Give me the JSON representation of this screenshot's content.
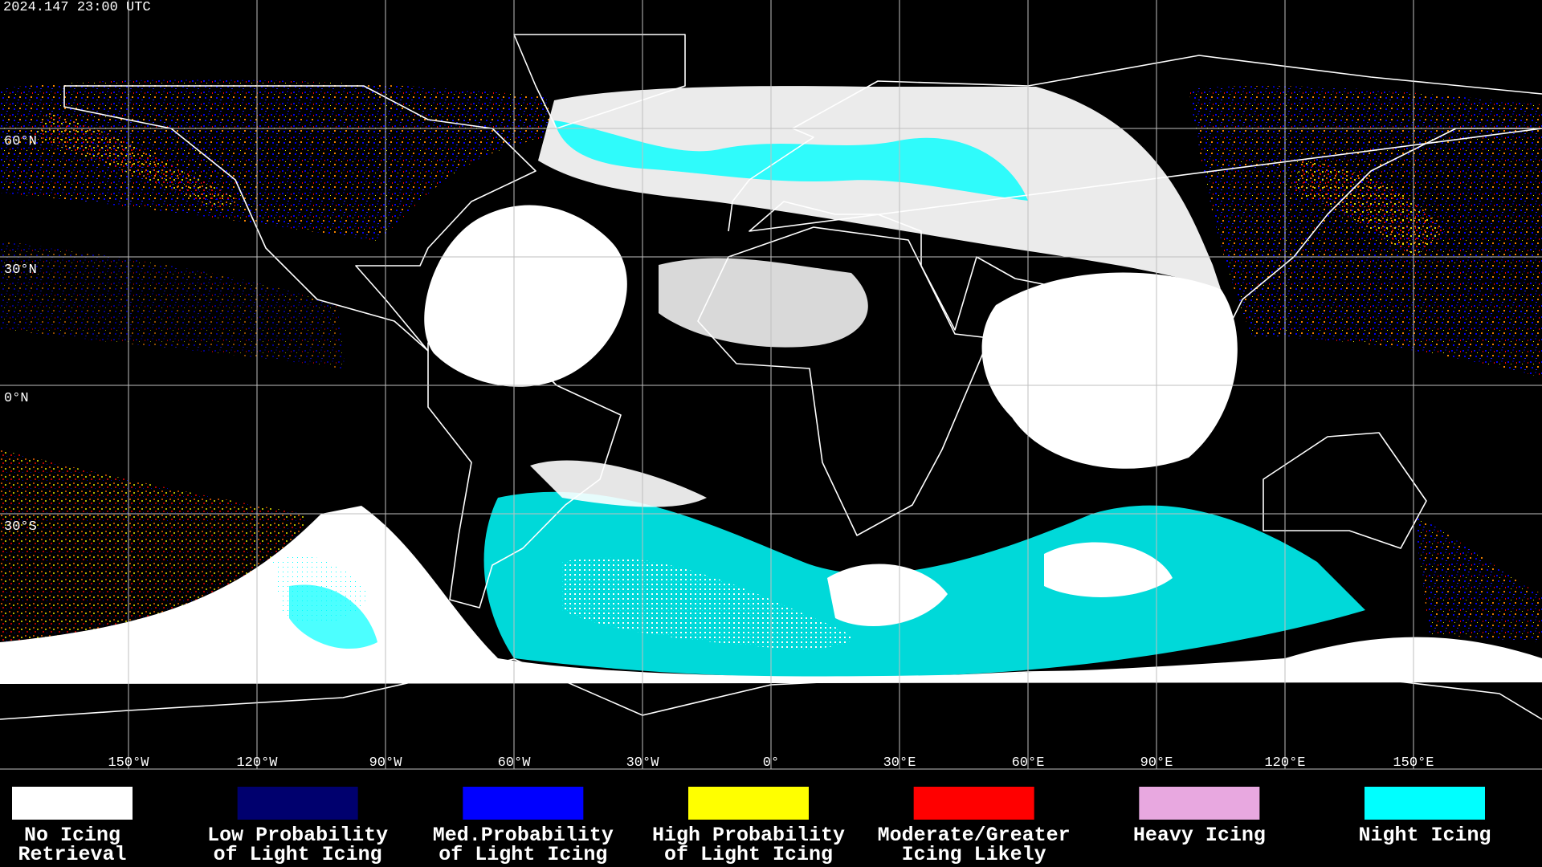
{
  "header": {
    "timestamp": "2024.147 23:00 UTC"
  },
  "map": {
    "lat_labels": [
      "60°N",
      "30°N",
      "0°N",
      "30°S"
    ],
    "lon_labels": [
      "150°W",
      "120°W",
      "90°W",
      "60°W",
      "30°W",
      "0°",
      "30°E",
      "60°E",
      "90°E",
      "120°E",
      "150°E"
    ]
  },
  "legend": [
    {
      "color": "#ffffff",
      "label": [
        "No Icing",
        "Retrieval"
      ]
    },
    {
      "color": "#00006e",
      "label": [
        "Low Probability",
        "of Light Icing"
      ]
    },
    {
      "color": "#0000ff",
      "label": [
        "Med.Probability",
        "of Light Icing"
      ]
    },
    {
      "color": "#ffff00",
      "label": [
        "High Probability",
        "of Light Icing"
      ]
    },
    {
      "color": "#ff0000",
      "label": [
        "Moderate/Greater",
        "Icing Likely"
      ]
    },
    {
      "color": "#e8a8e0",
      "label": [
        "Heavy Icing"
      ]
    },
    {
      "color": "#00ffff",
      "label": [
        "Night Icing"
      ]
    }
  ]
}
